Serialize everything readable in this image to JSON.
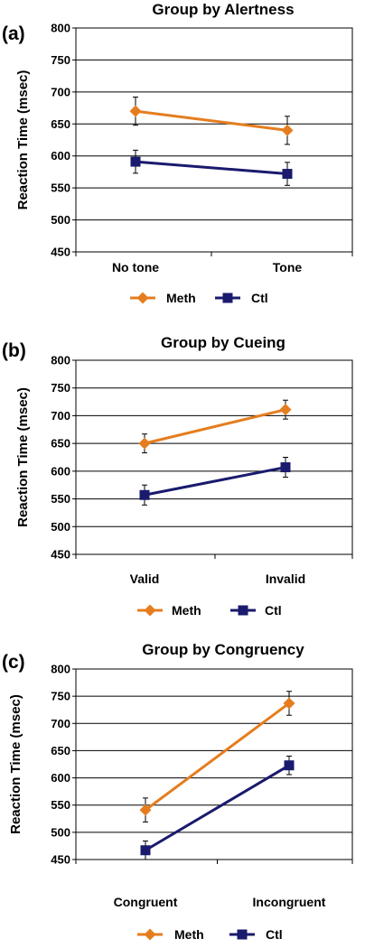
{
  "chart_data": [
    {
      "type": "line",
      "panel_label": "(a)",
      "title": "Group by Alertness",
      "ylabel": "Reaction Time (msec)",
      "ylim": [
        450,
        800
      ],
      "yticks": [
        450,
        500,
        550,
        600,
        650,
        700,
        750,
        800
      ],
      "grid": true,
      "legend_position": "bottom",
      "categories": [
        "No tone",
        "Tone"
      ],
      "series": [
        {
          "name": "Meth",
          "marker": "diamond",
          "color": "#E57D1F",
          "values": [
            670,
            640
          ],
          "error": [
            22,
            22
          ]
        },
        {
          "name": "Ctl",
          "marker": "square",
          "color": "#1A1A6E",
          "values": [
            591,
            572
          ],
          "error": [
            18,
            18
          ]
        }
      ]
    },
    {
      "type": "line",
      "panel_label": "(b)",
      "title": "Group by Cueing",
      "ylabel": "Reaction Time (msec)",
      "ylim": [
        450,
        800
      ],
      "yticks": [
        450,
        500,
        550,
        600,
        650,
        700,
        750,
        800
      ],
      "grid": true,
      "legend_position": "bottom",
      "categories": [
        "Valid",
        "Invalid"
      ],
      "series": [
        {
          "name": "Meth",
          "marker": "diamond",
          "color": "#E57D1F",
          "values": [
            650,
            711
          ],
          "error": [
            17,
            17
          ]
        },
        {
          "name": "Ctl",
          "marker": "square",
          "color": "#1A1A6E",
          "values": [
            557,
            607
          ],
          "error": [
            18,
            18
          ]
        }
      ]
    },
    {
      "type": "line",
      "panel_label": "(c)",
      "title": "Group by Congruency",
      "ylabel": "Reaction Time (msec)",
      "ylim": [
        450,
        800
      ],
      "yticks": [
        450,
        500,
        550,
        600,
        650,
        700,
        750,
        800
      ],
      "grid": true,
      "legend_position": "bottom",
      "categories": [
        "Congruent",
        "Incongruent"
      ],
      "series": [
        {
          "name": "Meth",
          "marker": "diamond",
          "color": "#E57D1F",
          "values": [
            541,
            737
          ],
          "error": [
            22,
            22
          ]
        },
        {
          "name": "Ctl",
          "marker": "square",
          "color": "#1A1A6E",
          "values": [
            467,
            623
          ],
          "error": [
            17,
            17
          ]
        }
      ]
    }
  ]
}
